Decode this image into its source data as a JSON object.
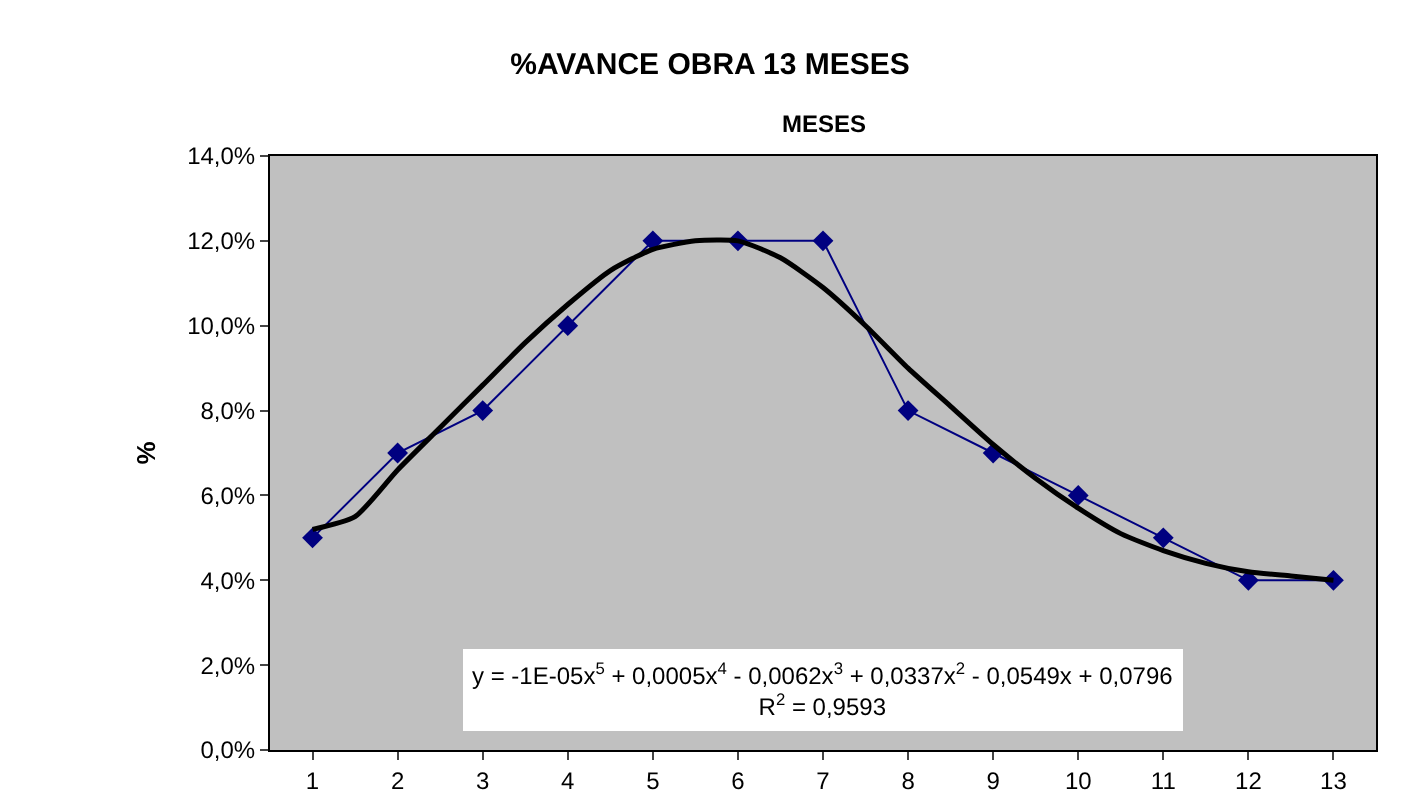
{
  "chart_data": {
    "type": "line",
    "title": "%AVANCE OBRA 13 MESES",
    "subtitle": "MESES",
    "ylabel": "%",
    "x": [
      1,
      2,
      3,
      4,
      5,
      6,
      7,
      8,
      9,
      10,
      11,
      12,
      13
    ],
    "series": [
      {
        "color": "#000080",
        "values": [
          5,
          7,
          8,
          10,
          12,
          12,
          12,
          8,
          7,
          6,
          5,
          4,
          4
        ],
        "marker": "diamond",
        "line_style": "solid"
      },
      {
        "type": "line",
        "color": "#000000",
        "marker": "none",
        "line_style": "solid",
        "x": [
          1,
          1.5,
          2,
          2.5,
          3,
          3.5,
          4,
          4.5,
          5,
          5.5,
          6,
          6.5,
          7,
          7.5,
          8,
          8.5,
          9,
          9.5,
          10,
          10.5,
          11,
          11.5,
          12,
          12.5,
          13
        ],
        "values": [
          5.2,
          5.5,
          6.6,
          7.6,
          8.6,
          9.6,
          10.5,
          11.3,
          11.8,
          12.0,
          12.0,
          11.6,
          10.9,
          10.0,
          9.0,
          8.1,
          7.2,
          6.4,
          5.7,
          5.1,
          4.7,
          4.4,
          4.2,
          4.1,
          4.0
        ]
      }
    ],
    "xlim": [
      0.5,
      13.5
    ],
    "xticks": [
      1,
      2,
      3,
      4,
      5,
      6,
      7,
      8,
      9,
      10,
      11,
      12,
      13
    ],
    "ylim": [
      0,
      14
    ],
    "yticks": [
      {
        "value": 0,
        "label": "0,0%"
      },
      {
        "value": 2,
        "label": "2,0%"
      },
      {
        "value": 4,
        "label": "4,0%"
      },
      {
        "value": 6,
        "label": "6,0%"
      },
      {
        "value": 8,
        "label": "8,0%"
      },
      {
        "value": 10,
        "label": "10,0%"
      },
      {
        "value": 12,
        "label": "12,0%"
      },
      {
        "value": 14,
        "label": "14,0%"
      }
    ],
    "grid": false,
    "annotations": [
      "y = -1E-05x$^{5}$ + 0,0005x$^{4}$ - 0,0062x$^{3}$ + 0,0337x$^{2}$ - 0,0549x + 0,0796",
      "R$^{2}$ = 0,9593"
    ]
  }
}
